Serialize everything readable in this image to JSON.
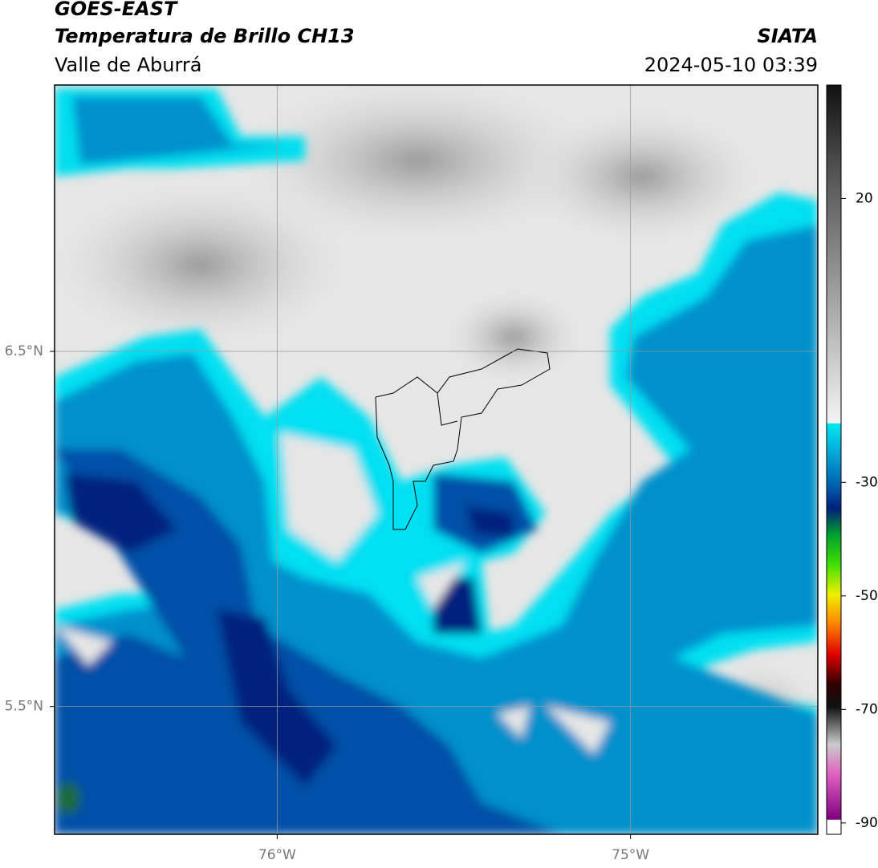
{
  "header": {
    "title": "GOES-EAST",
    "subtitle": "Temperatura de Brillo CH13",
    "region": "Valle de Aburrá",
    "agency": "SIATA",
    "timestamp": "2024-05-10 03:39"
  },
  "map": {
    "xlim": [
      -76.63,
      -74.47
    ],
    "ylim": [
      5.14,
      7.25
    ],
    "xticks": [
      {
        "value": -76,
        "label": "76°W"
      },
      {
        "value": -75,
        "label": "75°W"
      }
    ],
    "yticks": [
      {
        "value": 6.5,
        "label": "6.5°N"
      },
      {
        "value": 5.5,
        "label": "5.5°N"
      }
    ],
    "grid": true
  },
  "colorbar": {
    "lim": [
      -92,
      40
    ],
    "ticks": [
      20,
      -30,
      -50,
      -70,
      -90
    ]
  }
}
